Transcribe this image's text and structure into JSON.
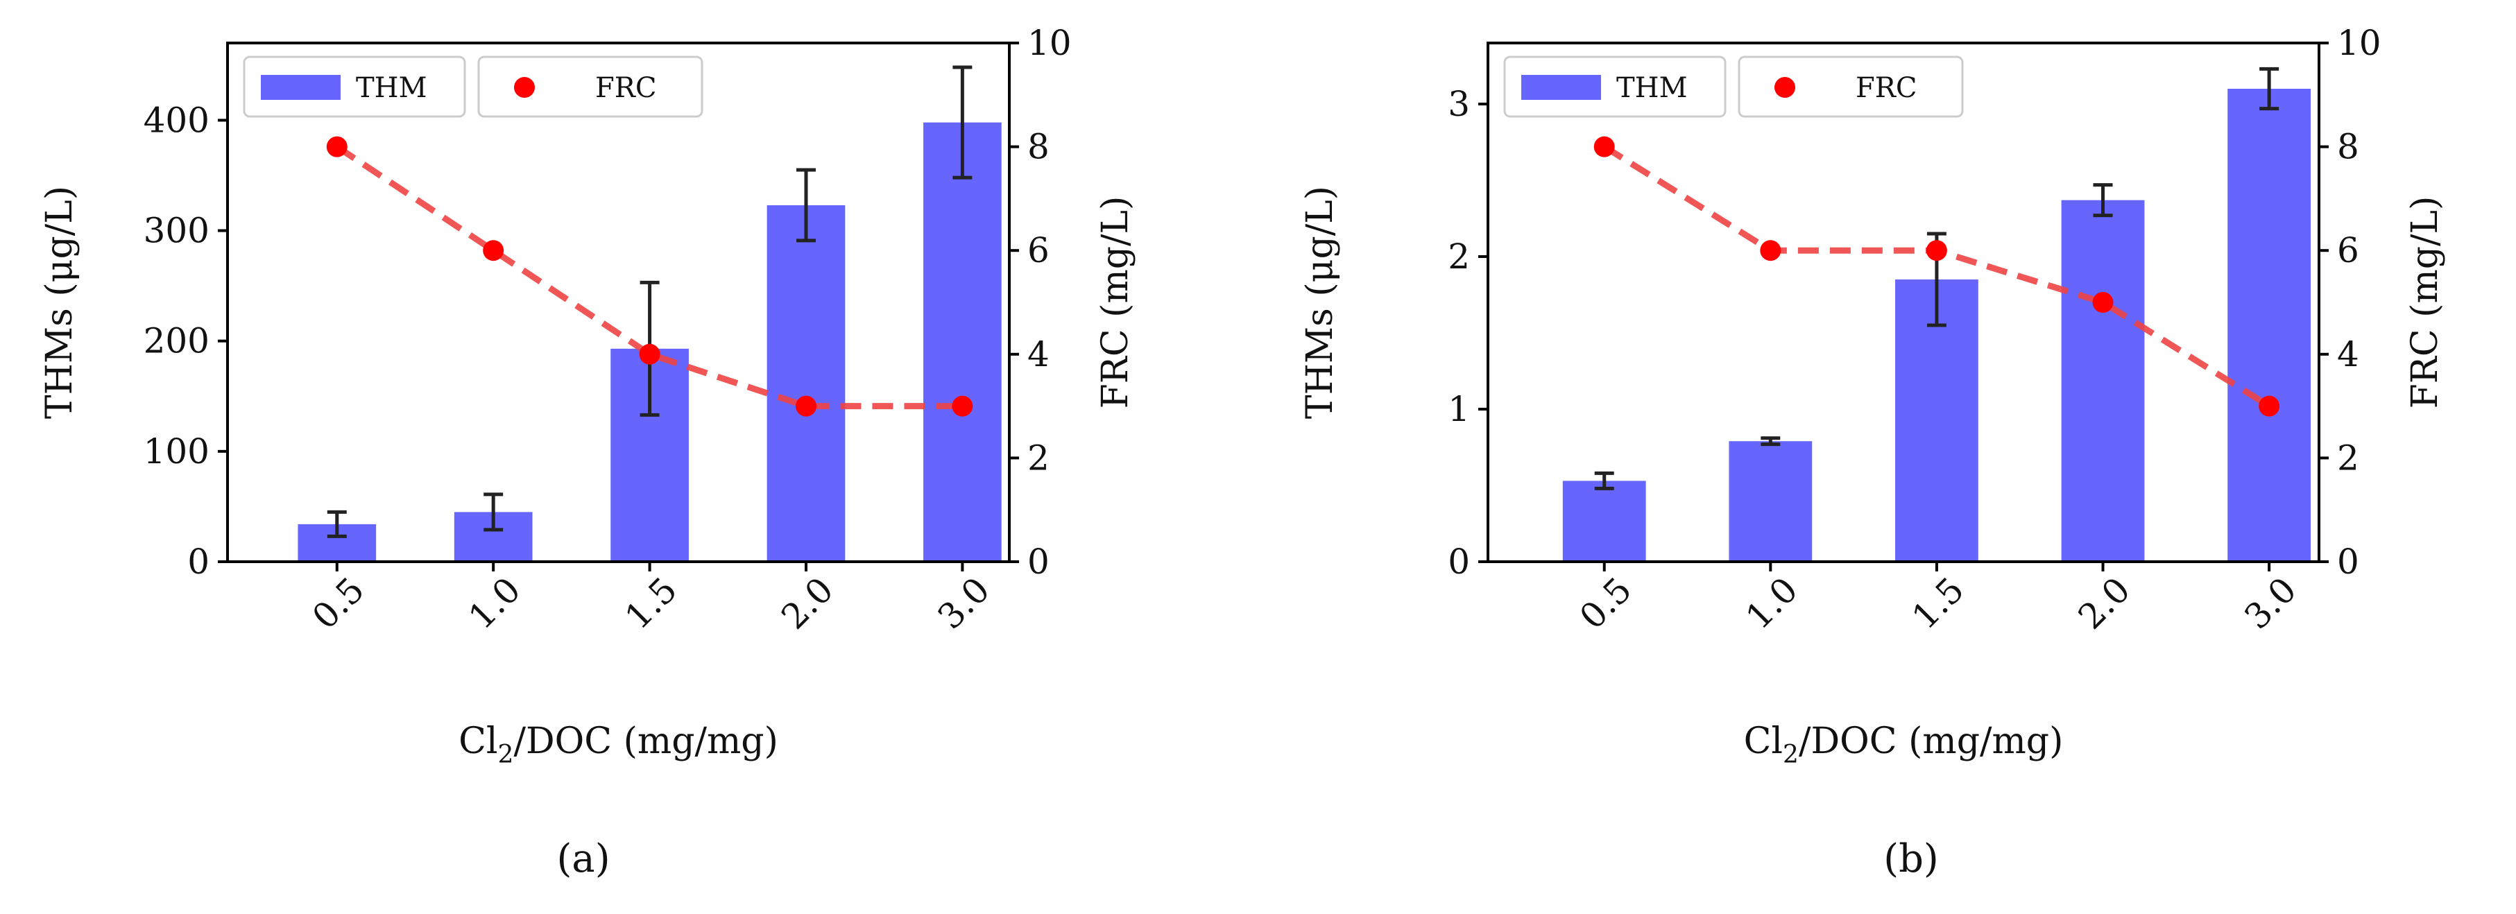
{
  "figure": {
    "captions": [
      "(a)",
      "(b)"
    ],
    "colors": {
      "bar": "#6666ff",
      "line": "#ee4444",
      "point": "#ff0000",
      "error": "#222222"
    }
  },
  "chart_data": [
    {
      "type": "bar",
      "id": "a",
      "caption": "(a)",
      "categories": [
        "0.5",
        "1.0",
        "1.5",
        "2.0",
        "3.0"
      ],
      "xlabel": "Cl2/DOC (mg/mg)",
      "xlabel_main": "Cl",
      "xlabel_sub": "2",
      "xlabel_rest": "/DOC (mg/mg)",
      "ylabel": "THMs (μg/L)",
      "y2label": "FRC (mg/L)",
      "ylim": [
        0,
        470
      ],
      "yticks": [
        0,
        100,
        200,
        300,
        400
      ],
      "y2lim": [
        0,
        10
      ],
      "y2ticks": [
        0,
        2,
        4,
        6,
        8,
        10
      ],
      "legend": [
        "THM",
        "FRC"
      ],
      "series": [
        {
          "name": "THM",
          "kind": "bar",
          "axis": "left",
          "values": [
            34,
            45,
            193,
            323,
            398
          ],
          "errors": [
            11,
            16,
            60,
            32,
            50
          ]
        },
        {
          "name": "FRC",
          "kind": "line",
          "axis": "right",
          "values": [
            8,
            6,
            4,
            3,
            3
          ]
        }
      ]
    },
    {
      "type": "bar",
      "id": "b",
      "caption": "(b)",
      "categories": [
        "0.5",
        "1.0",
        "1.5",
        "2.0",
        "3.0"
      ],
      "xlabel": "Cl2/DOC (mg/mg)",
      "xlabel_main": "Cl",
      "xlabel_sub": "2",
      "xlabel_rest": "/DOC (mg/mg)",
      "ylabel": "THMs (μg/L)",
      "y2label": "FRC (mg/L)",
      "ylim": [
        0,
        3.4
      ],
      "yticks": [
        0,
        1,
        2,
        3
      ],
      "y2lim": [
        0,
        10
      ],
      "y2ticks": [
        0,
        2,
        4,
        6,
        8,
        10
      ],
      "legend": [
        "THM",
        "FRC"
      ],
      "series": [
        {
          "name": "THM",
          "kind": "bar",
          "axis": "left",
          "values": [
            0.53,
            0.79,
            1.85,
            2.37,
            3.1
          ],
          "errors": [
            0.05,
            0.02,
            0.3,
            0.1,
            0.13
          ]
        },
        {
          "name": "FRC",
          "kind": "line",
          "axis": "right",
          "values": [
            8,
            6,
            6,
            5,
            3
          ]
        }
      ]
    }
  ]
}
